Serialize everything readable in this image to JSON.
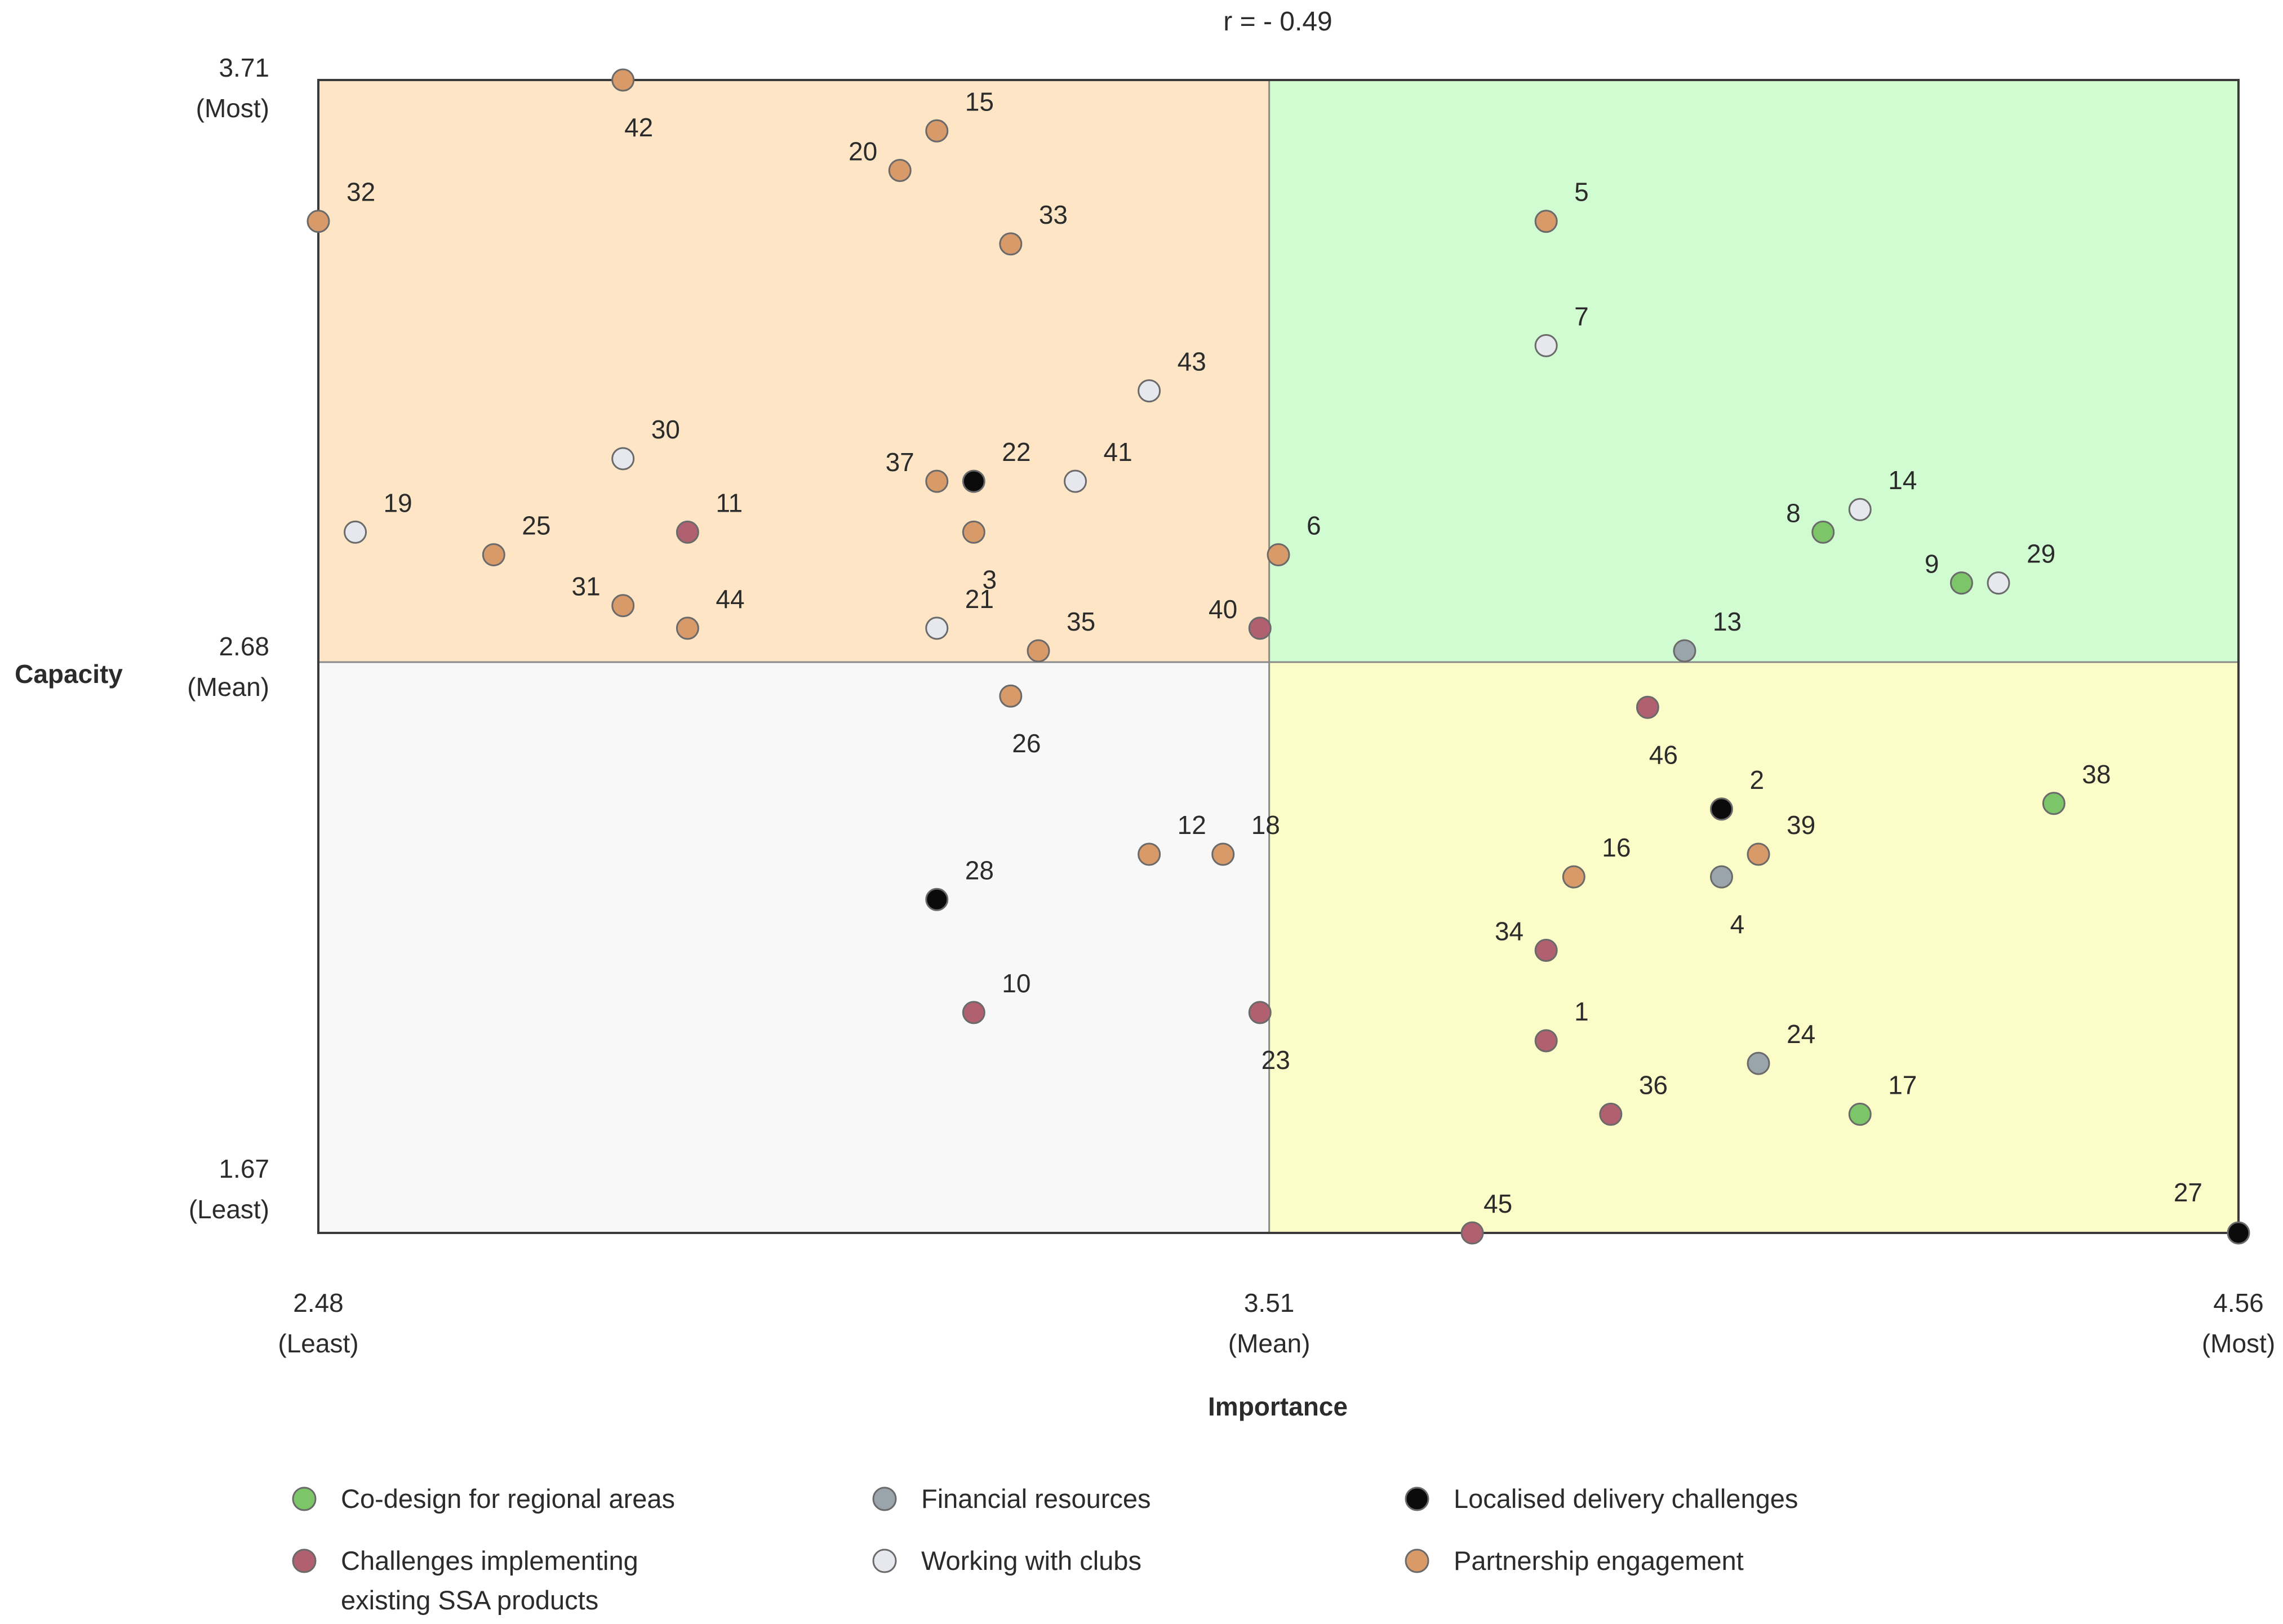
{
  "chart_data": {
    "type": "scatter",
    "title": "r = - 0.49",
    "xlabel": "Importance",
    "ylabel": "Capacity",
    "xlim": [
      2.48,
      4.56
    ],
    "ylim": [
      1.67,
      3.71
    ],
    "x_mean": 3.51,
    "y_mean": 2.68,
    "x_ticks": [
      {
        "value": 2.48,
        "label": "2.48",
        "sublabel": "(Least)"
      },
      {
        "value": 3.51,
        "label": "3.51",
        "sublabel": "(Mean)"
      },
      {
        "value": 4.56,
        "label": "4.56",
        "sublabel": "(Most)"
      }
    ],
    "y_ticks": [
      {
        "value": 3.71,
        "label": "3.71",
        "sublabel": "(Most)"
      },
      {
        "value": 2.68,
        "label": "2.68",
        "sublabel": "(Mean)"
      },
      {
        "value": 1.67,
        "label": "1.67",
        "sublabel": "(Least)"
      }
    ],
    "quadrants": [
      {
        "name": "low-importance-high-capacity",
        "color": "#fde5c6"
      },
      {
        "name": "high-importance-high-capacity",
        "color": "#d1fcd1"
      },
      {
        "name": "low-importance-low-capacity",
        "color": "#f8f8f8"
      },
      {
        "name": "high-importance-low-capacity",
        "color": "#fcfcc8"
      }
    ],
    "series": [
      {
        "key": "codesign",
        "name": "Co-design for regional areas",
        "color": "#7dc569",
        "points": [
          {
            "id": "8",
            "x": 4.11,
            "y": 2.91
          },
          {
            "id": "9",
            "x": 4.26,
            "y": 2.82
          },
          {
            "id": "38",
            "x": 4.36,
            "y": 2.43
          },
          {
            "id": "17",
            "x": 4.15,
            "y": 1.88
          }
        ]
      },
      {
        "key": "financial",
        "name": "Financial resources",
        "color": "#9aa4ab",
        "points": [
          {
            "id": "13",
            "x": 3.96,
            "y": 2.7
          },
          {
            "id": "4",
            "x": 4.0,
            "y": 2.3
          },
          {
            "id": "24",
            "x": 4.04,
            "y": 1.97
          }
        ]
      },
      {
        "key": "localised",
        "name": "Localised delivery challenges",
        "color": "#0b0b0b",
        "points": [
          {
            "id": "22",
            "x": 3.19,
            "y": 3.0
          },
          {
            "id": "2",
            "x": 4.0,
            "y": 2.42
          },
          {
            "id": "28",
            "x": 3.15,
            "y": 2.26
          },
          {
            "id": "27",
            "x": 4.56,
            "y": 1.67
          }
        ]
      },
      {
        "key": "challenges",
        "name": "Challenges implementing existing SSA products",
        "color": "#b0606e",
        "points": [
          {
            "id": "11",
            "x": 2.88,
            "y": 2.91
          },
          {
            "id": "40",
            "x": 3.5,
            "y": 2.74
          },
          {
            "id": "46",
            "x": 3.92,
            "y": 2.6
          },
          {
            "id": "34",
            "x": 3.81,
            "y": 2.17
          },
          {
            "id": "10",
            "x": 3.19,
            "y": 2.06
          },
          {
            "id": "23",
            "x": 3.5,
            "y": 2.06
          },
          {
            "id": "1",
            "x": 3.81,
            "y": 2.01
          },
          {
            "id": "36",
            "x": 3.88,
            "y": 1.88
          },
          {
            "id": "45",
            "x": 3.73,
            "y": 1.67
          }
        ]
      },
      {
        "key": "clubs",
        "name": "Working with clubs",
        "color": "#e7e8ee",
        "points": [
          {
            "id": "7",
            "x": 3.81,
            "y": 3.24
          },
          {
            "id": "43",
            "x": 3.38,
            "y": 3.16
          },
          {
            "id": "30",
            "x": 2.81,
            "y": 3.04
          },
          {
            "id": "41",
            "x": 3.3,
            "y": 3.0
          },
          {
            "id": "14",
            "x": 4.15,
            "y": 2.95
          },
          {
            "id": "19",
            "x": 2.52,
            "y": 2.91
          },
          {
            "id": "29",
            "x": 4.3,
            "y": 2.82
          },
          {
            "id": "21",
            "x": 3.15,
            "y": 2.74
          }
        ]
      },
      {
        "key": "partnership",
        "name": "Partnership engagement",
        "color": "#d99a6a",
        "points": [
          {
            "id": "42",
            "x": 2.81,
            "y": 3.71
          },
          {
            "id": "15",
            "x": 3.15,
            "y": 3.62
          },
          {
            "id": "20",
            "x": 3.11,
            "y": 3.55
          },
          {
            "id": "32",
            "x": 2.48,
            "y": 3.46
          },
          {
            "id": "5",
            "x": 3.81,
            "y": 3.46
          },
          {
            "id": "33",
            "x": 3.23,
            "y": 3.42
          },
          {
            "id": "37",
            "x": 3.15,
            "y": 3.0
          },
          {
            "id": "3",
            "x": 3.19,
            "y": 2.91
          },
          {
            "id": "25",
            "x": 2.67,
            "y": 2.87
          },
          {
            "id": "6",
            "x": 3.52,
            "y": 2.87
          },
          {
            "id": "31",
            "x": 2.81,
            "y": 2.78
          },
          {
            "id": "44",
            "x": 2.88,
            "y": 2.74
          },
          {
            "id": "35",
            "x": 3.26,
            "y": 2.7
          },
          {
            "id": "26",
            "x": 3.23,
            "y": 2.62
          },
          {
            "id": "12",
            "x": 3.38,
            "y": 2.34
          },
          {
            "id": "18",
            "x": 3.46,
            "y": 2.34
          },
          {
            "id": "16",
            "x": 3.84,
            "y": 2.3
          },
          {
            "id": "39",
            "x": 4.04,
            "y": 2.34
          }
        ]
      }
    ],
    "legend": {
      "position": "bottom",
      "entries": [
        {
          "key": "codesign",
          "label": "Co-design for regional areas",
          "lines": [
            "Co-design for regional areas"
          ]
        },
        {
          "key": "financial",
          "label": "Financial resources",
          "lines": [
            "Financial resources"
          ]
        },
        {
          "key": "localised",
          "label": "Localised delivery challenges",
          "lines": [
            "Localised delivery challenges"
          ]
        },
        {
          "key": "challenges",
          "label": "Challenges implementing existing SSA products",
          "lines": [
            "Challenges implementing",
            "existing SSA products"
          ]
        },
        {
          "key": "clubs",
          "label": "Working with clubs",
          "lines": [
            "Working with clubs"
          ]
        },
        {
          "key": "partnership",
          "label": "Partnership engagement",
          "lines": [
            "Partnership engagement"
          ]
        }
      ]
    }
  }
}
